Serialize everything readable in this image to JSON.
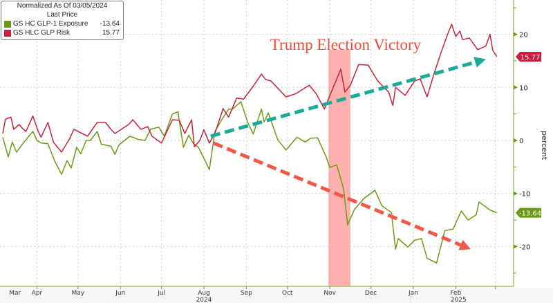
{
  "legend": {
    "title": "Normalized As Of 03/05/2024",
    "subtitle": "Last Price",
    "items": [
      {
        "name": "GS HC GLP-1 Exposure",
        "value": "-13.64",
        "color": "#6a9a10"
      },
      {
        "name": "GS HLC GLP Risk",
        "value": "15.77",
        "color": "#c8203c"
      }
    ]
  },
  "chart_data": {
    "type": "line",
    "x_unit": "days since 2024-03-05",
    "xlim": [
      0,
      376
    ],
    "ylim": [
      -27,
      26.5
    ],
    "ylabel": "percent",
    "yticks": [
      "20",
      "10",
      "0",
      "-10",
      "-20"
    ],
    "ytick_values": [
      20,
      10,
      0,
      -10,
      -20
    ],
    "months": [
      {
        "label": "Mar",
        "day": -4,
        "tick": -4
      },
      {
        "label": "Apr",
        "day": 12,
        "tick": 27
      },
      {
        "label": "May",
        "day": 42,
        "tick": 57
      },
      {
        "label": "Jun",
        "day": 73,
        "tick": 88
      },
      {
        "label": "Jul",
        "day": 103,
        "tick": 118
      },
      {
        "label": "Aug",
        "day": 134,
        "tick": 149
      },
      {
        "label": "Sep",
        "day": 165,
        "tick": 180
      },
      {
        "label": "Oct",
        "day": 195,
        "tick": 210
      },
      {
        "label": "Nov",
        "day": 226,
        "tick": 241
      },
      {
        "label": "Dec",
        "day": 256,
        "tick": 271
      },
      {
        "label": "Jan",
        "day": 287,
        "tick": 302
      },
      {
        "label": "Feb",
        "day": 318,
        "tick": 333
      }
    ],
    "month_ticks": [
      27,
      57,
      88,
      118,
      149,
      180,
      210,
      241,
      271,
      302,
      333,
      362
    ],
    "years": [
      {
        "label": "2024",
        "day": 149
      },
      {
        "label": "2025",
        "day": 335
      }
    ],
    "year_divider_day": 300,
    "grid": true,
    "series": [
      {
        "name": "GS HC GLP-1 Exposure",
        "color": "#6a9a10",
        "last": "-13.64",
        "points": [
          [
            2,
            0.6
          ],
          [
            6,
            -3.1
          ],
          [
            9,
            -0.3
          ],
          [
            12,
            -2.2
          ],
          [
            17,
            -0.5
          ],
          [
            24,
            1.7
          ],
          [
            27,
            0
          ],
          [
            30,
            -0.5
          ],
          [
            35,
            -0.6
          ],
          [
            40,
            -3.9
          ],
          [
            45,
            -6.4
          ],
          [
            49,
            -3.8
          ],
          [
            52,
            -5.2
          ],
          [
            56,
            -1.3
          ],
          [
            59,
            -2.5
          ],
          [
            63,
            0
          ],
          [
            66,
            0
          ],
          [
            71,
            1.7
          ],
          [
            74,
            -0.7
          ],
          [
            81,
            -1.1
          ],
          [
            84,
            -2.6
          ],
          [
            87,
            -0.8
          ],
          [
            95,
            0.8
          ],
          [
            101,
            0.2
          ],
          [
            106,
            0
          ],
          [
            110,
            2.1
          ],
          [
            116,
            2.5
          ],
          [
            120,
            0.8
          ],
          [
            126,
            5.0
          ],
          [
            130,
            5.4
          ],
          [
            134,
            -1.3
          ],
          [
            138,
            1.0
          ],
          [
            141,
            -0.5
          ],
          [
            145,
            -1.3
          ],
          [
            150,
            -3.9
          ],
          [
            153,
            -5.5
          ],
          [
            157,
            1.7
          ],
          [
            162,
            3.9
          ],
          [
            167,
            5.9
          ],
          [
            170,
            5.9
          ],
          [
            176,
            7.3
          ],
          [
            181,
            3.4
          ],
          [
            185,
            1.2
          ],
          [
            191,
            5.9
          ],
          [
            193,
            3.5
          ],
          [
            196,
            5.2
          ],
          [
            203,
            0.1
          ],
          [
            209,
            -1.8
          ],
          [
            217,
            0.6
          ],
          [
            223,
            -0.3
          ],
          [
            227,
            0.4
          ],
          [
            232,
            0.5
          ],
          [
            238,
            -2.9
          ],
          [
            241,
            -5.1
          ],
          [
            246,
            -4.6
          ],
          [
            251,
            -9.1
          ],
          [
            254,
            -15.9
          ],
          [
            259,
            -13.0
          ],
          [
            266,
            -10.9
          ],
          [
            274,
            -9.4
          ],
          [
            279,
            -12.3
          ],
          [
            286,
            -13.6
          ],
          [
            289,
            -20.5
          ],
          [
            291,
            -18.5
          ],
          [
            298,
            -20.1
          ],
          [
            303,
            -18.8
          ],
          [
            308,
            -18.5
          ],
          [
            312,
            -22.2
          ],
          [
            319,
            -23.1
          ],
          [
            325,
            -17.0
          ],
          [
            331,
            -16.7
          ],
          [
            337,
            -13.3
          ],
          [
            342,
            -15.0
          ],
          [
            348,
            -14.0
          ],
          [
            350,
            -11.6
          ],
          [
            358,
            -13.1
          ],
          [
            363,
            -13.64
          ]
        ]
      },
      {
        "name": "GS HLC GLP Risk",
        "color": "#c8203c",
        "last": "15.77",
        "points": [
          [
            2,
            1.3
          ],
          [
            4,
            4.0
          ],
          [
            8,
            4.4
          ],
          [
            10,
            2.1
          ],
          [
            14,
            3.0
          ],
          [
            17,
            2.1
          ],
          [
            19,
            1.7
          ],
          [
            24,
            4.6
          ],
          [
            28,
            1.7
          ],
          [
            30,
            0.6
          ],
          [
            35,
            3.4
          ],
          [
            39,
            -0.3
          ],
          [
            45,
            -2.2
          ],
          [
            51,
            0.4
          ],
          [
            54,
            2.1
          ],
          [
            64,
            0.8
          ],
          [
            71,
            3.4
          ],
          [
            77,
            3.4
          ],
          [
            81,
            2.1
          ],
          [
            84,
            1.3
          ],
          [
            94,
            3.0
          ],
          [
            97,
            3.9
          ],
          [
            103,
            2.1
          ],
          [
            108,
            2.6
          ],
          [
            111,
            0.8
          ],
          [
            118,
            -0.5
          ],
          [
            126,
            3.9
          ],
          [
            131,
            3.8
          ],
          [
            135,
            1.3
          ],
          [
            140,
            3.9
          ],
          [
            142,
            -1.2
          ],
          [
            146,
            0
          ],
          [
            149,
            2.0
          ],
          [
            153,
            -0.5
          ],
          [
            157,
            1.3
          ],
          [
            163,
            6.0
          ],
          [
            167,
            4.4
          ],
          [
            173,
            8.0
          ],
          [
            178,
            7.8
          ],
          [
            185,
            10.2
          ],
          [
            191,
            12.5
          ],
          [
            194,
            11.5
          ],
          [
            198,
            11.2
          ],
          [
            209,
            8.2
          ],
          [
            216,
            8.8
          ],
          [
            226,
            10.4
          ],
          [
            231,
            8.8
          ],
          [
            237,
            5.9
          ],
          [
            242,
            9.1
          ],
          [
            249,
            13.4
          ],
          [
            252,
            9.1
          ],
          [
            256,
            10.4
          ],
          [
            262,
            14.3
          ],
          [
            269,
            14.2
          ],
          [
            276,
            11.2
          ],
          [
            284,
            9.1
          ],
          [
            287,
            6.6
          ],
          [
            289,
            10.0
          ],
          [
            296,
            8.5
          ],
          [
            303,
            11.2
          ],
          [
            307,
            11.6
          ],
          [
            312,
            8.2
          ],
          [
            317,
            12.5
          ],
          [
            322,
            16.4
          ],
          [
            327,
            20.0
          ],
          [
            330,
            21.9
          ],
          [
            333,
            19.6
          ],
          [
            336,
            20.6
          ],
          [
            338,
            19.0
          ],
          [
            343,
            19.3
          ],
          [
            349,
            17.1
          ],
          [
            355,
            17.8
          ],
          [
            358,
            20.0
          ],
          [
            360,
            17.0
          ],
          [
            363,
            15.77
          ]
        ]
      }
    ],
    "annotations": {
      "text": "Trump Election Victory",
      "text_color": "#f04a3a",
      "band": {
        "start_day": 240,
        "end_day": 256,
        "color": "#ffb0ae"
      },
      "arrows": [
        {
          "name": "uptrend-arrow",
          "color": "#1aab96",
          "from": [
            154,
            0.8
          ],
          "to": [
            355,
            15.3
          ]
        },
        {
          "name": "downtrend-arrow",
          "color": "#f0584a",
          "from": [
            156,
            -0.5
          ],
          "to": [
            344,
            -20.5
          ]
        }
      ]
    }
  }
}
